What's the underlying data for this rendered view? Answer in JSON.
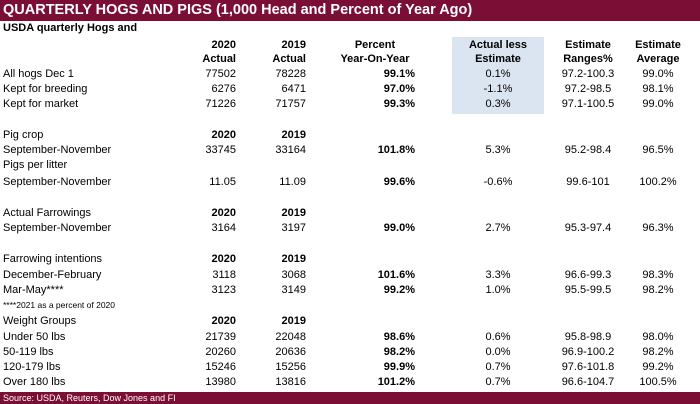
{
  "title": "QUARTERLY HOGS AND PIGS (1,000 Head and Percent of Year Ago)",
  "subtitle": "USDA quarterly Hogs and",
  "header": {
    "c1a": "2020",
    "c1b": "Actual",
    "c2a": "2019",
    "c2b": "Actual",
    "c3a": "Percent",
    "c3b": "Year-On-Year",
    "c4a": "Actual less",
    "c4b": "Estimate",
    "c5a": "Estimate",
    "c5b": "Ranges%",
    "c6a": "Estimate",
    "c6b": "Average"
  },
  "main_rows": [
    {
      "label": "All hogs Dec 1",
      "y2020": "77502",
      "y2019": "78228",
      "pct": "99.1%",
      "diff": "0.1%",
      "range": "97.2-100.3",
      "avg": "99.0%"
    },
    {
      "label": "Kept for breeding",
      "y2020": "6276",
      "y2019": "6471",
      "pct": "97.0%",
      "diff": "-1.1%",
      "range": "97.2-98.5",
      "avg": "98.1%"
    },
    {
      "label": "Kept for market",
      "y2020": "71226",
      "y2019": "71757",
      "pct": "99.3%",
      "diff": "0.3%",
      "range": "97.1-100.5",
      "avg": "99.0%"
    }
  ],
  "pig_crop": {
    "heading": "Pig crop",
    "y2020": "2020",
    "y2019": "2019",
    "row": {
      "label": "September-November",
      "y2020": "33745",
      "y2019": "33164",
      "pct": "101.8%",
      "diff": "5.3%",
      "range": "95.2-98.4",
      "avg": "96.5%"
    }
  },
  "pigs_per_litter": {
    "heading": "Pigs per litter",
    "row": {
      "label": "September-November",
      "y2020": "11.05",
      "y2019": "11.09",
      "pct": "99.6%",
      "diff": "-0.6%",
      "range": "99.6-101",
      "avg": "100.2%"
    }
  },
  "farrowings": {
    "heading": "Actual Farrowings",
    "y2020": "2020",
    "y2019": "2019",
    "row": {
      "label": "September-November",
      "y2020": "3164",
      "y2019": "3197",
      "pct": "99.0%",
      "diff": "2.7%",
      "range": "95.3-97.4",
      "avg": "96.3%"
    }
  },
  "intentions": {
    "heading": "Farrowing intentions",
    "y2020": "2020",
    "y2019": "2019",
    "rows": [
      {
        "label": "December-February",
        "y2020": "3118",
        "y2019": "3068",
        "pct": "101.6%",
        "diff": "3.3%",
        "range": "96.6-99.3",
        "avg": "98.3%"
      },
      {
        "label": "Mar-May****",
        "y2020": "3123",
        "y2019": "3149",
        "pct": "99.2%",
        "diff": "1.0%",
        "range": "95.5-99.5",
        "avg": "98.2%"
      }
    ]
  },
  "note": "****2021 as a percent of 2020",
  "weights": {
    "heading": "Weight Groups",
    "y2020": "2020",
    "y2019": "2019",
    "rows": [
      {
        "label": "Under 50 lbs",
        "y2020": "21739",
        "y2019": "22048",
        "pct": "98.6%",
        "diff": "0.6%",
        "range": "95.8-98.9",
        "avg": "98.0%"
      },
      {
        "label": "50-119 lbs",
        "y2020": "20260",
        "y2019": "20636",
        "pct": "98.2%",
        "diff": "0.0%",
        "range": "96.9-100.2",
        "avg": "98.2%"
      },
      {
        "label": "120-179 lbs",
        "y2020": "15246",
        "y2019": "15256",
        "pct": "99.9%",
        "diff": "0.7%",
        "range": "97.6-101.8",
        "avg": "99.2%"
      },
      {
        "label": "Over 180 lbs",
        "y2020": "13980",
        "y2019": "13816",
        "pct": "101.2%",
        "diff": "0.7%",
        "range": "96.6-104.7",
        "avg": "100.5%"
      }
    ]
  },
  "source": "Source: USDA, Reuters, Dow Jones and FI",
  "colors": {
    "title_bg": "#7a0e34",
    "shade": "#dbe5f1"
  }
}
